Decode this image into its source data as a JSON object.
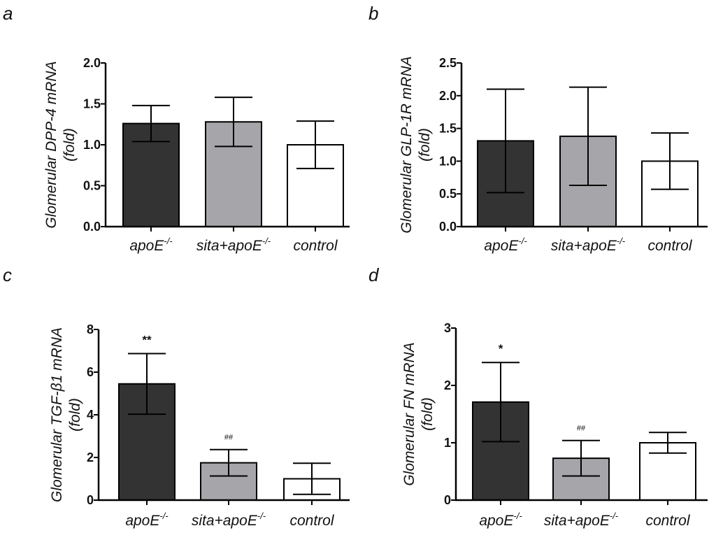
{
  "chart_data": [
    {
      "type": "bar",
      "panel": "a",
      "ylabel_line1": "Glomerular DPP-4 mRNA",
      "ylabel_line2": "(fold)",
      "ylim": [
        0,
        2.0
      ],
      "yticks": [
        "0.0",
        "0.5",
        "1.0",
        "1.5",
        "2.0"
      ],
      "categories": [
        {
          "base": "apoE",
          "sup": "-/-"
        },
        {
          "base": "sita+apoE",
          "sup": "-/-"
        },
        {
          "base": "control",
          "sup": ""
        }
      ],
      "values": [
        1.26,
        1.28,
        1.0
      ],
      "errors": [
        0.22,
        0.3,
        0.29
      ],
      "fills": [
        "#333333",
        "#a6a6aa",
        "#ffffff"
      ],
      "annotations": [
        "",
        "",
        ""
      ]
    },
    {
      "type": "bar",
      "panel": "b",
      "ylabel_line1": "Glomerular GLP-1R mRNA",
      "ylabel_line2": "(fold)",
      "ylim": [
        0,
        2.5
      ],
      "yticks": [
        "0.0",
        "0.5",
        "1.0",
        "1.5",
        "2.0",
        "2.5"
      ],
      "categories": [
        {
          "base": "apoE",
          "sup": "-/-"
        },
        {
          "base": "sita+apoE",
          "sup": "-/-"
        },
        {
          "base": "control",
          "sup": ""
        }
      ],
      "values": [
        1.31,
        1.38,
        1.0
      ],
      "errors": [
        0.79,
        0.75,
        0.43
      ],
      "fills": [
        "#333333",
        "#a6a6aa",
        "#ffffff"
      ],
      "annotations": [
        "",
        "",
        ""
      ]
    },
    {
      "type": "bar",
      "panel": "c",
      "ylabel_line1": "Glomerular TGF-β1 mRNA",
      "ylabel_line2": "(fold)",
      "ylim": [
        0,
        8
      ],
      "yticks": [
        "0",
        "2",
        "4",
        "6",
        "8"
      ],
      "categories": [
        {
          "base": "apoE",
          "sup": "-/-"
        },
        {
          "base": "sita+apoE",
          "sup": "-/-"
        },
        {
          "base": "control",
          "sup": ""
        }
      ],
      "values": [
        5.45,
        1.75,
        1.0
      ],
      "errors": [
        1.42,
        0.62,
        0.73
      ],
      "fills": [
        "#333333",
        "#a6a6aa",
        "#ffffff"
      ],
      "annotations": [
        "**",
        "##",
        ""
      ]
    },
    {
      "type": "bar",
      "panel": "d",
      "ylabel_line1": "Glomerular FN mRNA",
      "ylabel_line2": "(fold)",
      "ylim": [
        0,
        3
      ],
      "yticks": [
        "0",
        "1",
        "2",
        "3"
      ],
      "categories": [
        {
          "base": "apoE",
          "sup": "-/-"
        },
        {
          "base": "sita+apoE",
          "sup": "-/-"
        },
        {
          "base": "control",
          "sup": ""
        }
      ],
      "values": [
        1.71,
        0.73,
        1.0
      ],
      "errors": [
        0.69,
        0.31,
        0.18
      ],
      "fills": [
        "#333333",
        "#a6a6aa",
        "#ffffff"
      ],
      "annotations": [
        "*",
        "##",
        ""
      ]
    }
  ]
}
